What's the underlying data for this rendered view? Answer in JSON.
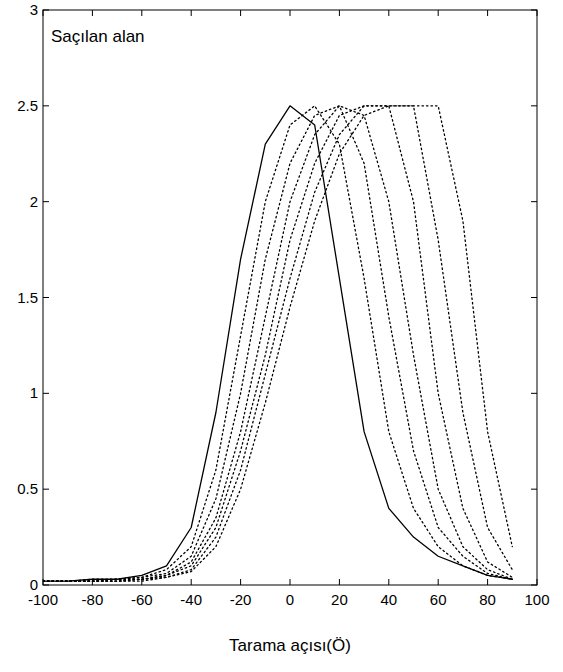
{
  "chart_data": {
    "type": "line",
    "title": "Saçılan alan",
    "x_label": "Tarama açısı(Ö)",
    "x": [
      -100,
      -90,
      -80,
      -70,
      -60,
      -50,
      -40,
      -30,
      -20,
      -10,
      0,
      10,
      20,
      30,
      40,
      50,
      60,
      70,
      80,
      90,
      100
    ],
    "series": [
      {
        "color": "#000000",
        "line_style": "solid",
        "values": [
          0.02,
          0.02,
          0.03,
          0.03,
          0.05,
          0.1,
          0.3,
          0.9,
          1.7,
          2.3,
          2.5,
          2.4,
          1.6,
          0.8,
          0.4,
          0.25,
          0.15,
          0.1,
          0.05,
          0.03,
          null
        ]
      },
      {
        "color": "#000000",
        "line_style": "dotted",
        "values": [
          0.02,
          0.02,
          0.03,
          0.03,
          0.04,
          0.08,
          0.2,
          0.6,
          1.3,
          2.0,
          2.4,
          2.5,
          2.3,
          1.6,
          0.8,
          0.4,
          0.2,
          0.1,
          0.05,
          0.03,
          null
        ]
      },
      {
        "color": "#000000",
        "line_style": "dotted",
        "values": [
          0.02,
          0.02,
          0.02,
          0.03,
          0.04,
          0.06,
          0.15,
          0.45,
          1.0,
          1.7,
          2.2,
          2.45,
          2.5,
          2.2,
          1.4,
          0.7,
          0.3,
          0.15,
          0.06,
          0.03,
          null
        ]
      },
      {
        "color": "#000000",
        "line_style": "dotted",
        "values": [
          0.02,
          0.02,
          0.02,
          0.03,
          0.03,
          0.05,
          0.12,
          0.35,
          0.8,
          1.4,
          2.0,
          2.35,
          2.5,
          2.45,
          2.0,
          1.2,
          0.5,
          0.2,
          0.08,
          0.03,
          null
        ]
      },
      {
        "color": "#000000",
        "line_style": "dotted",
        "values": [
          0.02,
          0.02,
          0.02,
          0.02,
          0.03,
          0.05,
          0.1,
          0.3,
          0.7,
          1.2,
          1.8,
          2.2,
          2.45,
          2.5,
          2.5,
          2.0,
          1.0,
          0.4,
          0.12,
          0.04,
          null
        ]
      },
      {
        "color": "#000000",
        "line_style": "dotted",
        "values": [
          0.02,
          0.02,
          0.02,
          0.02,
          0.03,
          0.04,
          0.08,
          0.25,
          0.6,
          1.1,
          1.6,
          2.05,
          2.35,
          2.5,
          2.5,
          2.5,
          1.8,
          0.9,
          0.3,
          0.08,
          null
        ]
      },
      {
        "color": "#000000",
        "line_style": "dotted",
        "values": [
          0.02,
          0.02,
          0.02,
          0.02,
          0.02,
          0.04,
          0.07,
          0.2,
          0.5,
          0.95,
          1.45,
          1.9,
          2.25,
          2.45,
          2.5,
          2.5,
          2.5,
          1.9,
          0.8,
          0.2,
          null
        ]
      }
    ],
    "xlim": [
      -100,
      100
    ],
    "ylim": [
      0,
      3
    ],
    "xticks": [
      -100,
      -80,
      -60,
      -40,
      -20,
      0,
      20,
      40,
      60,
      80,
      100
    ],
    "yticks": [
      0,
      0.5,
      1,
      1.5,
      2,
      2.5,
      3
    ],
    "grid": false
  }
}
